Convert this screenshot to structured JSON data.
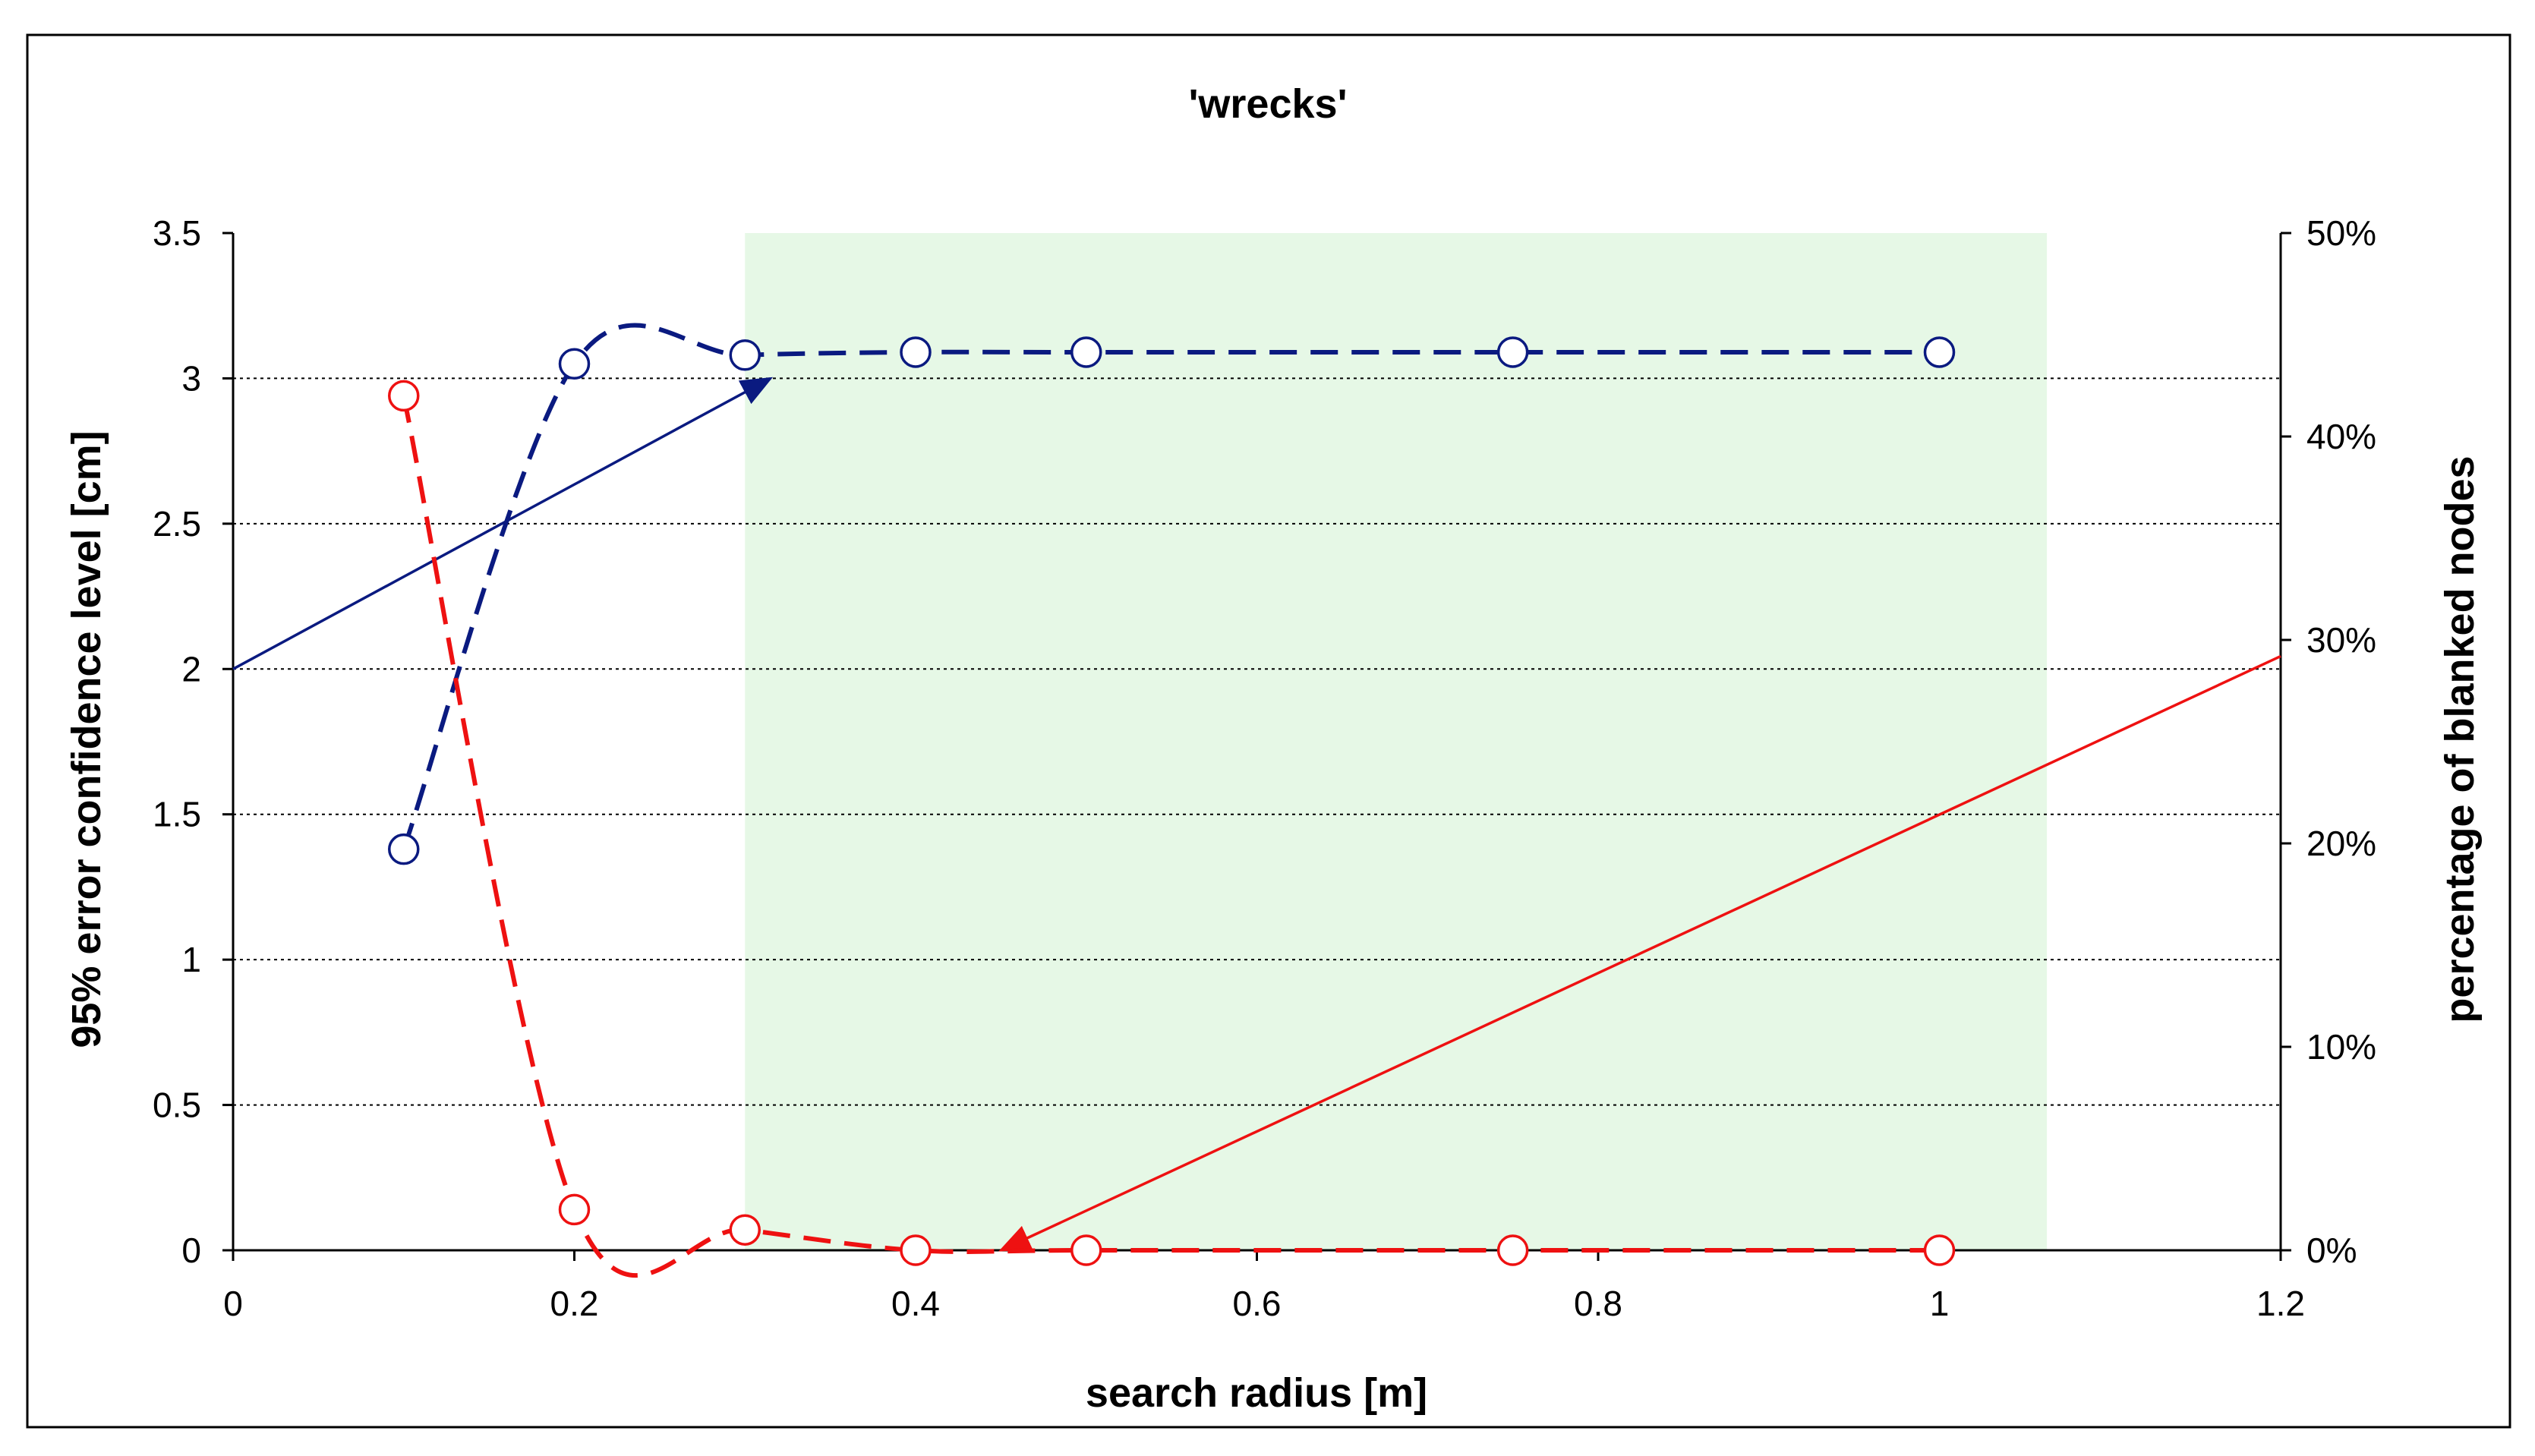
{
  "chart_data": {
    "type": "line",
    "title": "'wrecks'",
    "xlabel": "search radius [m]",
    "ylabel_left": "95% error confidence level [cm]",
    "ylabel_right": "percentage of blanked nodes",
    "xlim": [
      0,
      1.2
    ],
    "ylim_left": [
      0,
      3.5
    ],
    "ylim_right": [
      0,
      0.5
    ],
    "x_ticks": [
      "0",
      "0.2",
      "0.4",
      "0.6",
      "0.8",
      "1",
      "1.2"
    ],
    "y_left_ticks": [
      "0",
      "0.5",
      "1",
      "1.5",
      "2",
      "2.5",
      "3",
      "3.5"
    ],
    "y_right_ticks": [
      "0%",
      "10%",
      "20%",
      "30%",
      "40%",
      "50%"
    ],
    "grid": "horizontal dotted",
    "highlight_region_x": [
      0.3,
      1.063
    ],
    "highlight_color": "#e6f8e6",
    "series": [
      {
        "axis": "left",
        "color": "#0a1a80",
        "line_style": "dashed",
        "marker": "open-circle",
        "x": [
          0.1,
          0.2,
          0.3,
          0.4,
          0.5,
          0.75,
          1.0
        ],
        "y": [
          1.38,
          3.05,
          3.08,
          3.09,
          3.09,
          3.09,
          3.09
        ]
      },
      {
        "axis": "right",
        "color": "#ee1111",
        "line_style": "dashed",
        "marker": "open-circle",
        "x": [
          0.1,
          0.2,
          0.3,
          0.4,
          0.5,
          0.75,
          1.0
        ],
        "y": [
          0.42,
          0.02,
          0.01,
          0.0,
          0.0,
          0.0,
          0.0
        ]
      }
    ],
    "annotations": [
      {
        "type": "arrow",
        "color": "#0a1a80",
        "from": [
          0,
          2.0
        ],
        "to": [
          0.315,
          3.0
        ],
        "axis": "left"
      },
      {
        "type": "arrow",
        "color": "#ee1111",
        "from": [
          1.2,
          0.292
        ],
        "to": [
          0.45,
          0.0
        ],
        "axis": "right"
      }
    ]
  }
}
